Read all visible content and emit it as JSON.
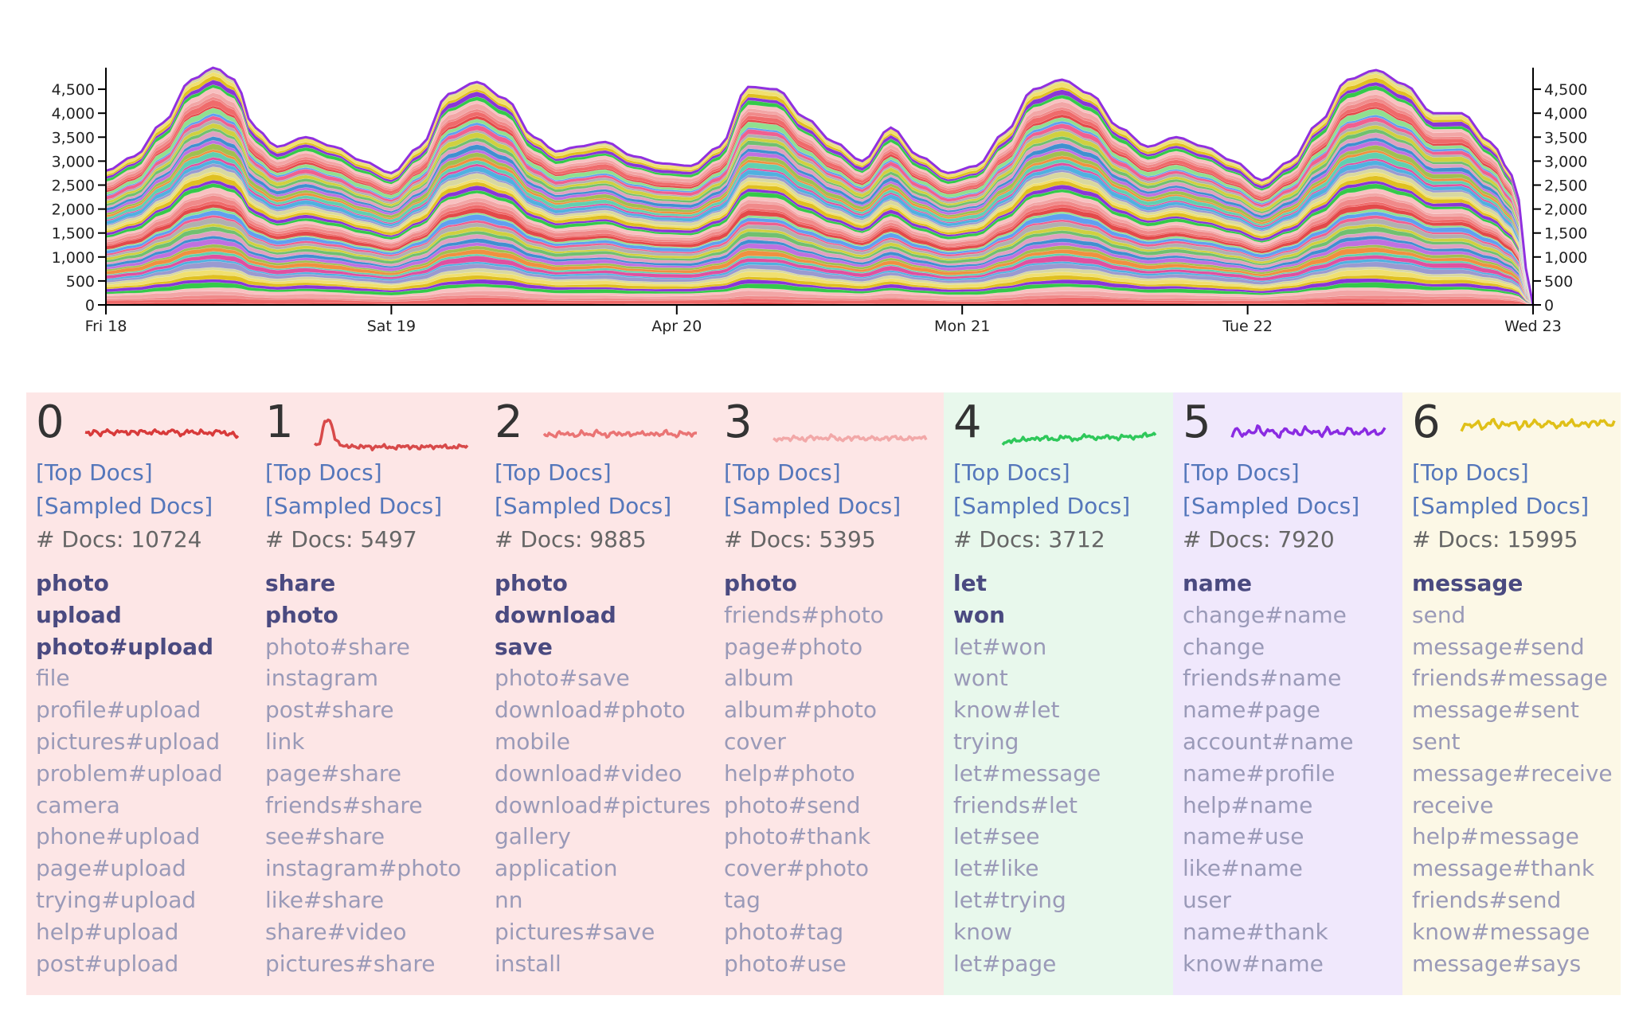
{
  "chart_data": {
    "type": "area",
    "stacked": true,
    "x_labels": [
      "Fri 18",
      "Sat 19",
      "Apr 20",
      "Mon 21",
      "Tue 22",
      "Wed 23"
    ],
    "y_ticks": [
      0,
      500,
      1000,
      1500,
      2000,
      2500,
      3000,
      3500,
      4000,
      4500
    ],
    "y_tick_labels": [
      "0",
      "500",
      "1,000",
      "1,500",
      "2,000",
      "2,500",
      "3,000",
      "3,500",
      "4,000",
      "4,500"
    ],
    "ylim": [
      0,
      4950
    ],
    "x_range": [
      0,
      5
    ],
    "grid": false,
    "total_series": {
      "x": [
        0,
        0.1,
        0.2,
        0.3,
        0.38,
        0.45,
        0.52,
        0.6,
        0.7,
        0.8,
        0.9,
        1.0,
        1.1,
        1.2,
        1.3,
        1.4,
        1.5,
        1.58,
        1.65,
        1.75,
        1.85,
        1.95,
        2.05,
        2.15,
        2.25,
        2.35,
        2.45,
        2.55,
        2.65,
        2.75,
        2.85,
        2.95,
        3.05,
        3.15,
        3.25,
        3.35,
        3.45,
        3.55,
        3.65,
        3.75,
        3.85,
        3.95,
        4.05,
        4.15,
        4.25,
        4.35,
        4.45,
        4.55,
        4.65,
        4.75,
        4.85,
        4.93,
        5.0
      ],
      "y": [
        2800,
        3100,
        3800,
        4700,
        4950,
        4700,
        3700,
        3300,
        3500,
        3300,
        3000,
        2750,
        3300,
        4400,
        4650,
        4300,
        3500,
        3200,
        3300,
        3400,
        3100,
        2950,
        2900,
        3300,
        4550,
        4500,
        3900,
        3400,
        3000,
        3700,
        3100,
        2750,
        2900,
        3600,
        4500,
        4700,
        4400,
        3700,
        3300,
        3500,
        3300,
        3000,
        2600,
        3000,
        3800,
        4700,
        4900,
        4600,
        4000,
        4000,
        3400,
        2700,
        0
      ]
    },
    "bands": 60,
    "band_colors": [
      "#e34a4a",
      "#ef6b6b",
      "#f08a8a",
      "#f2a6a6",
      "#f8c0c0",
      "#35c94a",
      "#8a35d8",
      "#e0c020",
      "#f0e070",
      "#d8d8a0",
      "#9a9ad0",
      "#50b0e0",
      "#e050a0",
      "#60d0b0",
      "#f09040",
      "#a0c050",
      "#c070e0",
      "#4090d0",
      "#e0a0c0",
      "#70c070",
      "#d0d040",
      "#b0b0b0",
      "#f06090",
      "#60a0f0",
      "#90e090"
    ],
    "topics": [
      {
        "id": "0",
        "color": "#d83a3a",
        "peak": 0.0,
        "values": [
          0.55,
          0.5,
          0.6,
          0.45,
          0.65,
          0.5,
          0.55,
          0.6,
          0.5,
          0.58,
          0.52,
          0.62,
          0.48,
          0.6,
          0.55,
          0.5,
          0.58,
          0.62,
          0.45,
          0.55,
          0.6,
          0.5,
          0.58,
          0.52,
          0.5,
          0.6,
          0.55,
          0.48,
          0.52,
          0.4
        ]
      },
      {
        "id": "1",
        "color": "#d84a4a",
        "peak": 1.0,
        "values": [
          0.15,
          0.2,
          0.95,
          0.9,
          0.3,
          0.15,
          0.1,
          0.12,
          0.08,
          0.1,
          0.12,
          0.05,
          0.1,
          0.12,
          0.08,
          0.05,
          0.1,
          0.12,
          0.08,
          0.1,
          0.05,
          0.12,
          0.1,
          0.08,
          0.12,
          0.1,
          0.05,
          0.1,
          0.12,
          0.1
        ]
      },
      {
        "id": "2",
        "color": "#ea7474",
        "peak": 0.0,
        "values": [
          0.45,
          0.5,
          0.42,
          0.55,
          0.48,
          0.52,
          0.4,
          0.55,
          0.5,
          0.45,
          0.58,
          0.5,
          0.42,
          0.55,
          0.5,
          0.48,
          0.52,
          0.45,
          0.55,
          0.5,
          0.48,
          0.52,
          0.45,
          0.58,
          0.5,
          0.42,
          0.55,
          0.5,
          0.48,
          0.52
        ]
      },
      {
        "id": "3",
        "color": "#f2a8a8",
        "peak": 0.0,
        "values": [
          0.35,
          0.3,
          0.38,
          0.32,
          0.4,
          0.35,
          0.3,
          0.42,
          0.35,
          0.38,
          0.32,
          0.45,
          0.35,
          0.3,
          0.38,
          0.35,
          0.42,
          0.32,
          0.35,
          0.4,
          0.3,
          0.38,
          0.35,
          0.42,
          0.35,
          0.32,
          0.38,
          0.35,
          0.4,
          0.35
        ]
      },
      {
        "id": "4",
        "color": "#2ec85a",
        "peak": 0.0,
        "values": [
          0.2,
          0.25,
          0.3,
          0.28,
          0.35,
          0.3,
          0.38,
          0.32,
          0.4,
          0.35,
          0.3,
          0.38,
          0.42,
          0.35,
          0.3,
          0.4,
          0.45,
          0.38,
          0.35,
          0.4,
          0.42,
          0.38,
          0.35,
          0.45,
          0.4,
          0.38,
          0.42,
          0.48,
          0.45,
          0.5
        ]
      },
      {
        "id": "5",
        "color": "#8a2be2",
        "peak": 0.0,
        "values": [
          0.45,
          0.7,
          0.4,
          0.6,
          0.5,
          0.75,
          0.45,
          0.65,
          0.55,
          0.4,
          0.7,
          0.5,
          0.6,
          0.45,
          0.72,
          0.5,
          0.62,
          0.42,
          0.68,
          0.5,
          0.6,
          0.45,
          0.7,
          0.55,
          0.48,
          0.65,
          0.5,
          0.6,
          0.45,
          0.7
        ]
      },
      {
        "id": "6",
        "color": "#e0c018",
        "peak": 0.0,
        "values": [
          0.6,
          0.85,
          0.7,
          0.9,
          0.65,
          0.8,
          0.95,
          0.7,
          0.85,
          0.75,
          0.9,
          0.65,
          0.88,
          0.72,
          0.95,
          0.7,
          0.82,
          0.9,
          0.68,
          0.85,
          0.78,
          0.92,
          0.7,
          0.88,
          0.75,
          0.9,
          0.8,
          0.95,
          0.72,
          0.88
        ]
      }
    ]
  },
  "topics": [
    {
      "id": "0",
      "bg": "#fde6e6",
      "top_docs": "[Top Docs]",
      "sampled_docs": "[Sampled Docs]",
      "doc_count": "# Docs: 10724",
      "terms": [
        "photo",
        "upload",
        "photo#upload",
        "file",
        "profile#upload",
        "pictures#upload",
        "problem#upload",
        "camera",
        "phone#upload",
        "page#upload",
        "trying#upload",
        "help#upload",
        "post#upload"
      ],
      "strong_count": 3
    },
    {
      "id": "1",
      "bg": "#fde6e6",
      "top_docs": "[Top Docs]",
      "sampled_docs": "[Sampled Docs]",
      "doc_count": "# Docs: 5497",
      "terms": [
        "share",
        "photo",
        "photo#share",
        "instagram",
        "post#share",
        "link",
        "page#share",
        "friends#share",
        "see#share",
        "instagram#photo",
        "like#share",
        "share#video",
        "pictures#share"
      ],
      "strong_count": 2
    },
    {
      "id": "2",
      "bg": "#fde6e6",
      "top_docs": "[Top Docs]",
      "sampled_docs": "[Sampled Docs]",
      "doc_count": "# Docs: 9885",
      "terms": [
        "photo",
        "download",
        "save",
        "photo#save",
        "download#photo",
        "mobile",
        "download#video",
        "download#pictures",
        "gallery",
        "application",
        "nn",
        "pictures#save",
        "install"
      ],
      "strong_count": 3
    },
    {
      "id": "3",
      "bg": "#fde6e6",
      "top_docs": "[Top Docs]",
      "sampled_docs": "[Sampled Docs]",
      "doc_count": "# Docs: 5395",
      "terms": [
        "photo",
        "friends#photo",
        "page#photo",
        "album",
        "album#photo",
        "cover",
        "help#photo",
        "photo#send",
        "photo#thank",
        "cover#photo",
        "tag",
        "photo#tag",
        "photo#use"
      ],
      "strong_count": 1
    },
    {
      "id": "4",
      "bg": "#e8f8ec",
      "top_docs": "[Top Docs]",
      "sampled_docs": "[Sampled Docs]",
      "doc_count": "# Docs: 3712",
      "terms": [
        "let",
        "won",
        "let#won",
        "wont",
        "know#let",
        "trying",
        "let#message",
        "friends#let",
        "let#see",
        "let#like",
        "let#trying",
        "know",
        "let#page"
      ],
      "strong_count": 2
    },
    {
      "id": "5",
      "bg": "#f0e8fc",
      "top_docs": "[Top Docs]",
      "sampled_docs": "[Sampled Docs]",
      "doc_count": "# Docs: 7920",
      "terms": [
        "name",
        "change#name",
        "change",
        "friends#name",
        "name#page",
        "account#name",
        "name#profile",
        "help#name",
        "name#use",
        "like#name",
        "user",
        "name#thank",
        "know#name"
      ],
      "strong_count": 1
    },
    {
      "id": "6",
      "bg": "#fcf8e6",
      "top_docs": "[Top Docs]",
      "sampled_docs": "[Sampled Docs]",
      "doc_count": "# Docs: 15995",
      "terms": [
        "message",
        "send",
        "message#send",
        "friends#message",
        "message#sent",
        "sent",
        "message#receive",
        "receive",
        "help#message",
        "message#thank",
        "friends#send",
        "know#message",
        "message#says"
      ],
      "strong_count": 1
    }
  ]
}
